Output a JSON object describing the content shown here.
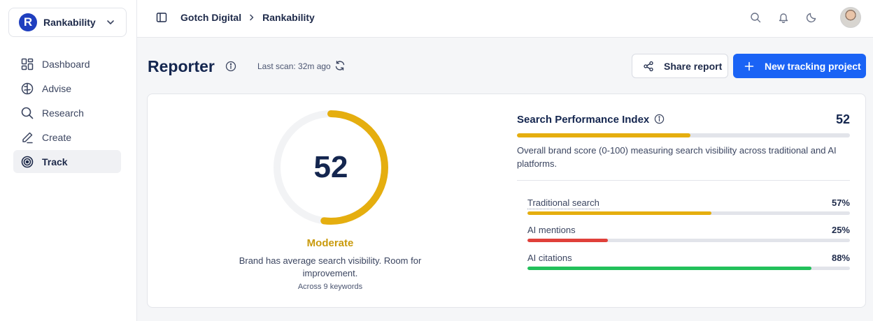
{
  "workspace": {
    "logo_letter": "R",
    "name": "Rankability"
  },
  "nav": [
    {
      "label": "Dashboard",
      "icon": "dashboard-icon"
    },
    {
      "label": "Advise",
      "icon": "brain-icon"
    },
    {
      "label": "Research",
      "icon": "search-icon"
    },
    {
      "label": "Create",
      "icon": "pen-icon"
    },
    {
      "label": "Track",
      "icon": "target-icon",
      "active": true
    }
  ],
  "breadcrumb": {
    "org": "Gotch Digital",
    "project": "Rankability"
  },
  "header": {
    "title": "Reporter",
    "last_scan": "Last scan: 32m ago",
    "share_label": "Share report",
    "new_label": "New tracking project"
  },
  "score": {
    "value": "52",
    "fraction": 0.52,
    "rating": "Moderate",
    "description": "Brand has average search visibility. Room for improvement.",
    "sub": "Across 9 keywords"
  },
  "spi": {
    "title": "Search Performance Index",
    "value": "52",
    "fraction": 0.52,
    "description": "Overall brand score (0-100) measuring search visibility across traditional and AI platforms."
  },
  "metrics": [
    {
      "label": "Traditional search",
      "pct": "57%",
      "fraction": 0.57,
      "color": "#e5ae0f"
    },
    {
      "label": "AI mentions",
      "pct": "25%",
      "fraction": 0.25,
      "color": "#e0403a"
    },
    {
      "label": "AI citations",
      "pct": "88%",
      "fraction": 0.88,
      "color": "#22c05a"
    }
  ],
  "colors": {
    "accent": "#1a63f5",
    "gauge": "#e5ae0f",
    "rating": "#c99a0c"
  }
}
